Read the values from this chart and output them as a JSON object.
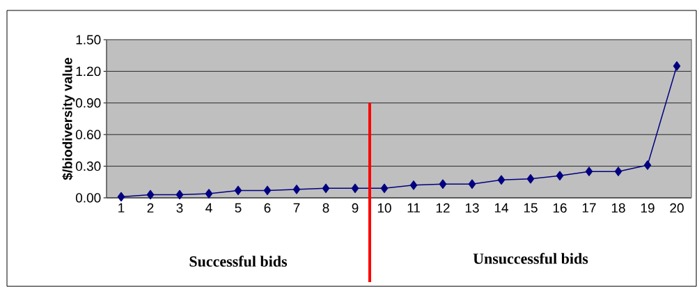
{
  "chart_data": {
    "type": "line",
    "ylabel": "$/biodiversity value",
    "x": [
      1,
      2,
      3,
      4,
      5,
      6,
      7,
      8,
      9,
      10,
      11,
      12,
      13,
      14,
      15,
      16,
      17,
      18,
      19,
      20
    ],
    "series": [
      {
        "color": "#000080",
        "values": [
          0.01,
          0.03,
          0.03,
          0.04,
          0.07,
          0.07,
          0.08,
          0.09,
          0.09,
          0.09,
          0.12,
          0.13,
          0.13,
          0.17,
          0.18,
          0.21,
          0.25,
          0.25,
          0.31,
          1.25
        ]
      }
    ],
    "xlim": [
      0.5,
      20.5
    ],
    "xticks": [
      1,
      2,
      3,
      4,
      5,
      6,
      7,
      8,
      9,
      10,
      11,
      12,
      13,
      14,
      15,
      16,
      17,
      18,
      19,
      20
    ],
    "ylim": [
      0,
      1.5
    ],
    "yticks": [
      {
        "value": 0,
        "label": "0.00"
      },
      {
        "value": 0.3,
        "label": "0.30"
      },
      {
        "value": 0.6,
        "label": "0.60"
      },
      {
        "value": 0.9,
        "label": "0.90"
      },
      {
        "value": 1.2,
        "label": "1.20"
      },
      {
        "value": 1.5,
        "label": "1.50"
      }
    ],
    "grid": "y",
    "marker": "diamond",
    "line_style": "solid",
    "ref_lines": [
      {
        "axis": "x",
        "value": 9.5,
        "color": "#ff0000"
      }
    ],
    "annotations": [
      "Successful bids",
      "Unsuccessful bids"
    ]
  }
}
